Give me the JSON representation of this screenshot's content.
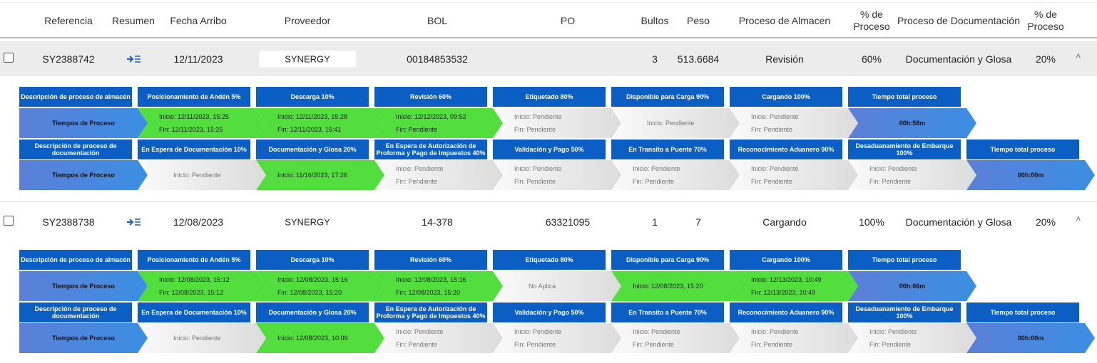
{
  "header": {
    "columns": [
      "Referencia",
      "Resumen",
      "Fecha Arribo",
      "Proveedor",
      "BOL",
      "PO",
      "Bultos",
      "Peso",
      "Proceso de Almacen",
      "% de Proceso",
      "Proceso de Documentación",
      "% de Proceso"
    ]
  },
  "warehouse_stages": [
    "Descripción de proceso de almacén",
    "Posicionamiento de Andén 5%",
    "Descarga 10%",
    "Revisión 60%",
    "Etiquetado 80%",
    "Disponible para Carga 90%",
    "Cargando 100%",
    "Tiempo total proceso"
  ],
  "documentation_stages": [
    "Descripción de proceso de documentación",
    "En Espera de Documentación 10%",
    "Documentación y Glosa 20%",
    "En Espera de Autorización de Proforma y Pago de Impuestos 40%",
    "Validación y Pago 50%",
    "En Transito a Puente 70%",
    "Reconocimiento Aduanero 90%",
    "Desaduanamiento de Embarque 100%",
    "Tiempo total proceso"
  ],
  "rows": [
    {
      "referencia": "SY2388742",
      "fecha_arribo": "12/11/2023",
      "proveedor": "SYNERGY",
      "bol": "00184853532",
      "bultos": "3",
      "peso": "513.6684",
      "proceso_almacen": "Revisión",
      "porcentaje_almacen": "60%",
      "proceso_documentacion": "Documentación y Glosa",
      "porcentaje_documentacion": "20%",
      "warehouse": [
        {
          "color": "blue",
          "lines": [
            "Tiempos de Proceso"
          ]
        },
        {
          "color": "green",
          "lines": [
            "Inicio: 12/11/2023, 15:25",
            "Fin: 12/11/2023, 15:25"
          ]
        },
        {
          "color": "green",
          "lines": [
            "Inicio: 12/11/2023, 15:28",
            "Fin: 12/11/2023, 15:41"
          ]
        },
        {
          "color": "green",
          "lines": [
            "Inicio: 12/12/2023, 09:52",
            "Fin: Pendiente"
          ]
        },
        {
          "color": "gray",
          "lines": [
            "Inicio: Pendiente",
            "Fin: Pendiente"
          ]
        },
        {
          "color": "gray",
          "lines": [
            "Inicio: Pendiente"
          ]
        },
        {
          "color": "gray",
          "lines": [
            "Inicio: Pendiente",
            "Fin: Pendiente"
          ]
        },
        {
          "color": "blue",
          "lines": [
            "00h:58m"
          ]
        }
      ],
      "documentation": [
        {
          "color": "blue",
          "lines": [
            "Tiempos de Proceso"
          ]
        },
        {
          "color": "gray",
          "lines": [
            "Inicio: Pendiente"
          ]
        },
        {
          "color": "green",
          "lines": [
            "Inicio: 11/16/2023, 17:26"
          ]
        },
        {
          "color": "gray",
          "lines": [
            "Inicio: Pendiente",
            "Fin: Pendiente"
          ]
        },
        {
          "color": "gray",
          "lines": [
            "Inicio: Pendiente",
            "Fin: Pendiente"
          ]
        },
        {
          "color": "gray",
          "lines": [
            "Inicio: Pendiente",
            "Fin: Pendiente"
          ]
        },
        {
          "color": "gray",
          "lines": [
            "Inicio: Pendiente",
            "Fin: Pendiente"
          ]
        },
        {
          "color": "gray",
          "lines": [
            "Inicio: Pendiente",
            "Fin: Pendiente"
          ]
        },
        {
          "color": "blue",
          "lines": [
            "00h:00m"
          ]
        }
      ]
    },
    {
      "referencia": "SY2388738",
      "fecha_arribo": "12/08/2023",
      "proveedor": "SYNERGY",
      "bol": "14-378",
      "po": "63321095",
      "bultos": "1",
      "peso": "7",
      "proceso_almacen": "Cargando",
      "porcentaje_almacen": "100%",
      "proceso_documentacion": "Documentación y Glosa",
      "porcentaje_documentacion": "20%",
      "warehouse": [
        {
          "color": "blue",
          "lines": [
            "Tiempos de Proceso"
          ]
        },
        {
          "color": "green",
          "lines": [
            "Inicio: 12/08/2023, 15:12",
            "Fin: 12/08/2023, 15:12"
          ]
        },
        {
          "color": "green",
          "lines": [
            "Inicio: 12/08/2023, 15:16",
            "Fin: 12/08/2023, 15:20"
          ]
        },
        {
          "color": "green",
          "lines": [
            "Inicio: 12/08/2023, 15:16",
            "Fin: 12/08/2023, 15:20"
          ]
        },
        {
          "color": "gray",
          "lines": [
            "No Aplica"
          ]
        },
        {
          "color": "green",
          "lines": [
            "Inicio: 12/08/2023, 15:20"
          ]
        },
        {
          "color": "green",
          "lines": [
            "Inicio: 12/13/2023, 10:49",
            "Fin: 12/13/2023, 10:49"
          ]
        },
        {
          "color": "blue",
          "lines": [
            "00h:06m"
          ]
        }
      ],
      "documentation": [
        {
          "color": "blue",
          "lines": [
            "Tiempos de Proceso"
          ]
        },
        {
          "color": "gray",
          "lines": [
            "Inicio: Pendiente"
          ]
        },
        {
          "color": "green",
          "lines": [
            "Inicio: 12/08/2023, 10:09"
          ]
        },
        {
          "color": "gray",
          "lines": [
            "Inicio: Pendiente",
            "Fin: Pendiente"
          ]
        },
        {
          "color": "gray",
          "lines": [
            "Inicio: Pendiente",
            "Fin: Pendiente"
          ]
        },
        {
          "color": "gray",
          "lines": [
            "Inicio: Pendiente",
            "Fin: Pendiente"
          ]
        },
        {
          "color": "gray",
          "lines": [
            "Inicio: Pendiente",
            "Fin: Pendiente"
          ]
        },
        {
          "color": "gray",
          "lines": [
            "Inicio: Pendiente",
            "Fin: Pendiente"
          ]
        },
        {
          "color": "blue",
          "lines": [
            "00h:00m"
          ]
        }
      ]
    }
  ]
}
